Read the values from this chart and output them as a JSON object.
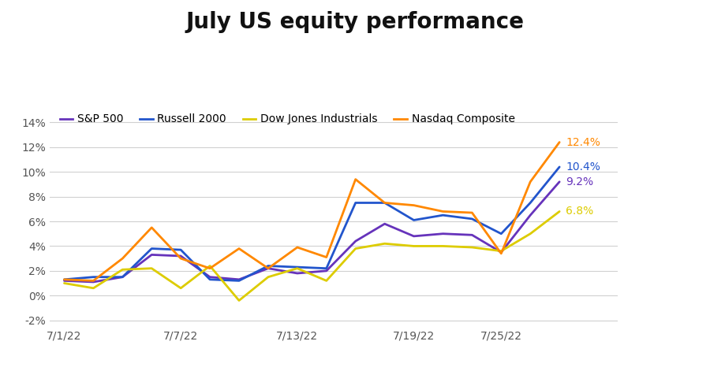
{
  "title": "July US equity performance",
  "series": [
    {
      "label": "S&P 500",
      "color": "#6633BB",
      "values": [
        1.2,
        1.1,
        1.5,
        3.3,
        3.2,
        1.5,
        1.3,
        2.2,
        1.8,
        2.0,
        4.4,
        5.8,
        4.8,
        5.0,
        4.9,
        3.5,
        6.5,
        9.2
      ]
    },
    {
      "label": "Russell 2000",
      "color": "#2255CC",
      "values": [
        1.3,
        1.5,
        1.5,
        3.8,
        3.7,
        1.3,
        1.2,
        2.4,
        2.3,
        2.2,
        7.5,
        7.5,
        6.1,
        6.5,
        6.2,
        5.0,
        7.5,
        10.4
      ]
    },
    {
      "label": "Dow Jones Industrials",
      "color": "#DDCC00",
      "values": [
        1.0,
        0.6,
        2.1,
        2.2,
        0.6,
        2.4,
        -0.4,
        1.5,
        2.2,
        1.2,
        3.8,
        4.2,
        4.0,
        4.0,
        3.9,
        3.6,
        5.0,
        6.8
      ]
    },
    {
      "label": "Nasdaq Composite",
      "color": "#FF8800",
      "values": [
        1.3,
        1.2,
        3.0,
        5.5,
        3.0,
        2.2,
        3.8,
        2.2,
        3.9,
        3.1,
        9.4,
        7.5,
        7.3,
        6.8,
        6.7,
        3.4,
        9.2,
        12.4
      ]
    }
  ],
  "x_tick_positions": [
    0,
    4,
    8,
    12,
    15,
    17
  ],
  "x_tick_labels": [
    "7/1/22",
    "7/7/22",
    "7/13/22",
    "7/19/22",
    "7/25/22",
    ""
  ],
  "ylim": [
    -2.5,
    15.5
  ],
  "yticks": [
    -2,
    0,
    2,
    4,
    6,
    8,
    10,
    12,
    14
  ],
  "background_color": "#ffffff",
  "grid_color": "#d0d0d0",
  "title_fontsize": 20,
  "tick_fontsize": 10,
  "legend_fontsize": 10,
  "linewidth": 2.0
}
